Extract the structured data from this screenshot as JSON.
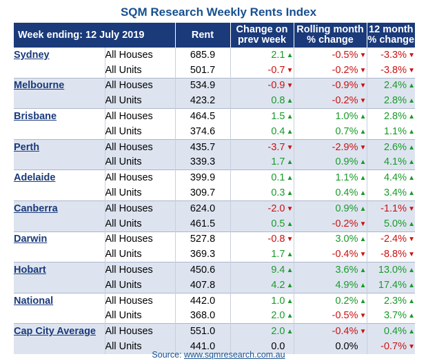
{
  "title": "SQM Research Weekly Rents Index",
  "header": {
    "week_label": "Week ending:  12 July 2019",
    "rent": "Rent",
    "change_line1": "Change on",
    "change_line2": "prev week",
    "rolling_line1": "Rolling month",
    "rolling_line2": "% change",
    "twelve_line1": "12 month",
    "twelve_line2": "% change"
  },
  "rows": [
    {
      "city": "Sydney",
      "type": "All Houses",
      "rent": "685.9",
      "wk": "2.1",
      "wk_dir": "up",
      "rm": "-0.5%",
      "rm_dir": "down",
      "ym": "-3.3%",
      "ym_dir": "down"
    },
    {
      "city": "",
      "type": "All Units",
      "rent": "501.7",
      "wk": "-0.7",
      "wk_dir": "down",
      "rm": "-0.2%",
      "rm_dir": "down",
      "ym": "-3.8%",
      "ym_dir": "down"
    },
    {
      "city": "Melbourne",
      "type": "All Houses",
      "rent": "534.9",
      "wk": "-0.9",
      "wk_dir": "down",
      "rm": "-0.9%",
      "rm_dir": "down",
      "ym": "2.4%",
      "ym_dir": "up"
    },
    {
      "city": "",
      "type": "All Units",
      "rent": "423.2",
      "wk": "0.8",
      "wk_dir": "up",
      "rm": "-0.2%",
      "rm_dir": "down",
      "ym": "2.8%",
      "ym_dir": "up"
    },
    {
      "city": "Brisbane",
      "type": "All Houses",
      "rent": "464.5",
      "wk": "1.5",
      "wk_dir": "up",
      "rm": "1.0%",
      "rm_dir": "up",
      "ym": "2.8%",
      "ym_dir": "up"
    },
    {
      "city": "",
      "type": "All Units",
      "rent": "374.6",
      "wk": "0.4",
      "wk_dir": "up",
      "rm": "0.7%",
      "rm_dir": "up",
      "ym": "1.1%",
      "ym_dir": "up"
    },
    {
      "city": "Perth",
      "type": "All Houses",
      "rent": "435.7",
      "wk": "-3.7",
      "wk_dir": "down",
      "rm": "-2.9%",
      "rm_dir": "down",
      "ym": "2.6%",
      "ym_dir": "up"
    },
    {
      "city": "",
      "type": "All Units",
      "rent": "339.3",
      "wk": "1.7",
      "wk_dir": "up",
      "rm": "0.9%",
      "rm_dir": "up",
      "ym": "4.1%",
      "ym_dir": "up"
    },
    {
      "city": "Adelaide",
      "type": "All Houses",
      "rent": "399.9",
      "wk": "0.1",
      "wk_dir": "up",
      "rm": "1.1%",
      "rm_dir": "up",
      "ym": "4.4%",
      "ym_dir": "up"
    },
    {
      "city": "",
      "type": "All Units",
      "rent": "309.7",
      "wk": "0.3",
      "wk_dir": "up",
      "rm": "0.4%",
      "rm_dir": "up",
      "ym": "3.4%",
      "ym_dir": "up"
    },
    {
      "city": "Canberra",
      "type": "All Houses",
      "rent": "624.0",
      "wk": "-2.0",
      "wk_dir": "down",
      "rm": "0.9%",
      "rm_dir": "up",
      "ym": "-1.1%",
      "ym_dir": "down"
    },
    {
      "city": "",
      "type": "All Units",
      "rent": "461.5",
      "wk": "0.5",
      "wk_dir": "up",
      "rm": "-0.2%",
      "rm_dir": "down",
      "ym": "5.0%",
      "ym_dir": "up"
    },
    {
      "city": "Darwin",
      "type": "All Houses",
      "rent": "527.8",
      "wk": "-0.8",
      "wk_dir": "down",
      "rm": "3.0%",
      "rm_dir": "up",
      "ym": "-2.4%",
      "ym_dir": "down"
    },
    {
      "city": "",
      "type": "All Units",
      "rent": "369.3",
      "wk": "1.7",
      "wk_dir": "up",
      "rm": "-0.4%",
      "rm_dir": "down",
      "ym": "-8.8%",
      "ym_dir": "down"
    },
    {
      "city": "Hobart",
      "type": "All Houses",
      "rent": "450.6",
      "wk": "9.4",
      "wk_dir": "up",
      "rm": "3.6%",
      "rm_dir": "up",
      "ym": "13.0%",
      "ym_dir": "up"
    },
    {
      "city": "",
      "type": "All Units",
      "rent": "407.8",
      "wk": "4.2",
      "wk_dir": "up",
      "rm": "4.9%",
      "rm_dir": "up",
      "ym": "17.4%",
      "ym_dir": "up"
    },
    {
      "city": "National",
      "type": "All Houses",
      "rent": "442.0",
      "wk": "1.0",
      "wk_dir": "up",
      "rm": "0.2%",
      "rm_dir": "up",
      "ym": "2.3%",
      "ym_dir": "up"
    },
    {
      "city": "",
      "type": "All Units",
      "rent": "368.0",
      "wk": "2.0",
      "wk_dir": "up",
      "rm": "-0.5%",
      "rm_dir": "down",
      "ym": "3.7%",
      "ym_dir": "up"
    },
    {
      "city": "Cap City Average",
      "type": "All Houses",
      "rent": "551.0",
      "wk": "2.0",
      "wk_dir": "up",
      "rm": "-0.4%",
      "rm_dir": "down",
      "ym": "0.4%",
      "ym_dir": "up"
    },
    {
      "city": "",
      "type": "All Units",
      "rent": "441.0",
      "wk": "0.0",
      "wk_dir": "none",
      "rm": "0.0%",
      "rm_dir": "none",
      "ym": "-0.7%",
      "ym_dir": "down"
    }
  ],
  "arrows": {
    "up": "▲",
    "down": "▼",
    "none": ""
  },
  "source": {
    "prefix": "Source: ",
    "link": "www.sqmresearch.com.au"
  },
  "colors": {
    "header_bg": "#1a3a7a",
    "title": "#17508f",
    "shade": "#dde4f0",
    "up": "#1a9a2a",
    "down": "#cc1111"
  }
}
